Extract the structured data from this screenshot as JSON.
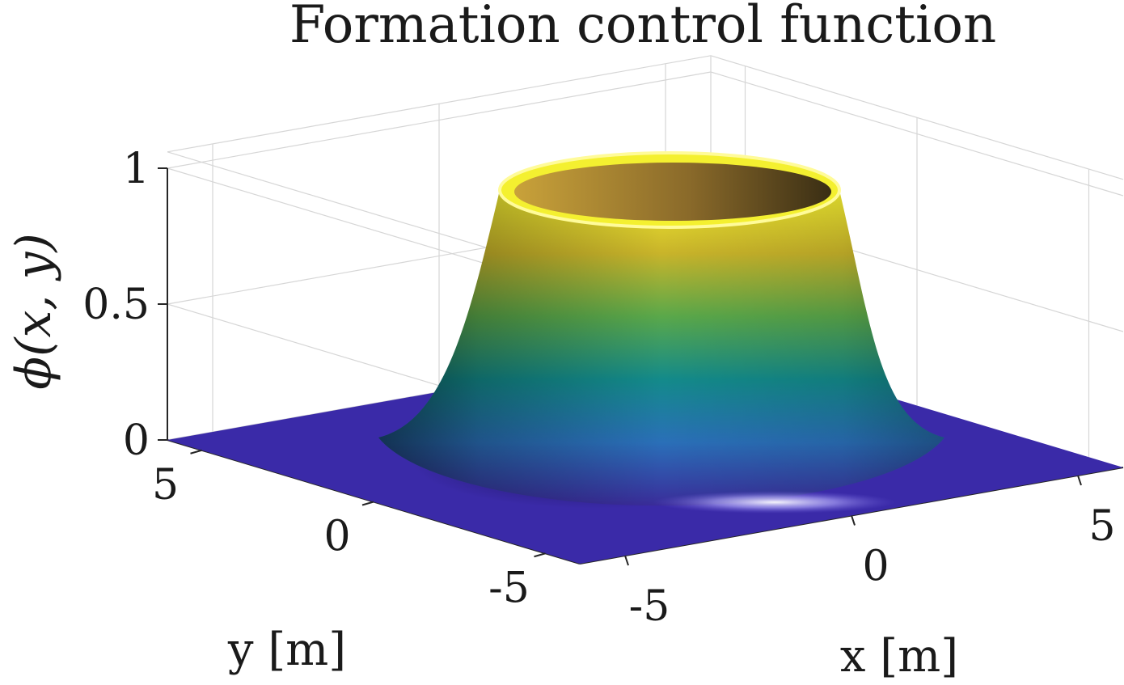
{
  "chart_data": {
    "type": "surface",
    "title": "Formation control function",
    "xlabel": "x [m]",
    "ylabel": "y [m]",
    "zlabel": "ϕ(x, y)",
    "xlim": [
      -6,
      6
    ],
    "ylim": [
      -6,
      6
    ],
    "zlim": [
      0,
      1
    ],
    "x_ticks": [
      "-5",
      "0",
      "5"
    ],
    "y_ticks": [
      "-5",
      "0",
      "5"
    ],
    "z_ticks": [
      "0",
      "0.5",
      "1"
    ],
    "grid": true,
    "colormap": "parula",
    "lighting": true,
    "surface": {
      "shape": "ring-shaped plateau centered at origin",
      "center": [
        0,
        0
      ],
      "plateau_value": 1,
      "base_value": 0,
      "colors": [
        "#3a2c9a",
        "#2a6fb8",
        "#138a8a",
        "#5aa84a",
        "#c9b42a",
        "#f2ee30"
      ]
    }
  }
}
